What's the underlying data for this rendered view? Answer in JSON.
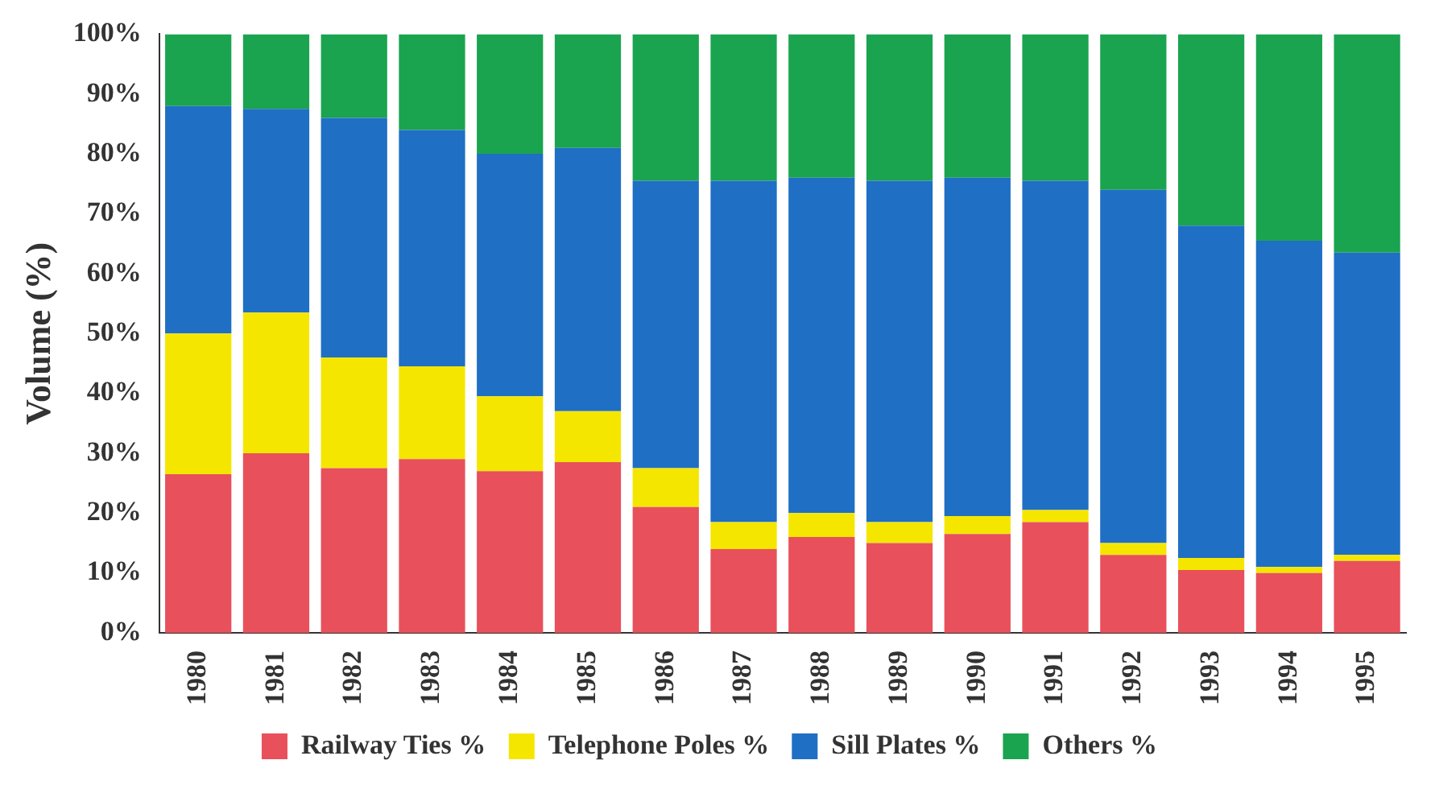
{
  "chart_data": {
    "type": "bar",
    "stacked": true,
    "ylabel": "Volume (%)",
    "categories": [
      "1980",
      "1981",
      "1982",
      "1983",
      "1984",
      "1985",
      "1986",
      "1987",
      "1988",
      "1989",
      "1990",
      "1991",
      "1992",
      "1993",
      "1994",
      "1995"
    ],
    "series": [
      {
        "name": "Railway Ties %",
        "color": "#e8505b",
        "values": [
          26.5,
          30,
          27.5,
          29,
          27,
          28.5,
          21,
          14,
          16,
          15,
          16.5,
          18.5,
          13,
          10.5,
          10,
          12
        ]
      },
      {
        "name": "Telephone Poles %",
        "color": "#f5e600",
        "values": [
          23.5,
          23.5,
          18.5,
          15.5,
          12.5,
          8.5,
          6.5,
          4.5,
          4,
          3.5,
          3,
          2,
          2,
          2,
          1,
          1
        ]
      },
      {
        "name": "Sill Plates %",
        "color": "#1f6fc4",
        "values": [
          38,
          34,
          40,
          39.5,
          40.5,
          44,
          48,
          57,
          56,
          57,
          56.5,
          55,
          59,
          55.5,
          54.5,
          50.5
        ]
      },
      {
        "name": "Others %",
        "color": "#1aa44f",
        "values": [
          12,
          12.5,
          14,
          16,
          20,
          19,
          24.5,
          24.5,
          24,
          24.5,
          24,
          24.5,
          26,
          32,
          34.5,
          36.5
        ]
      }
    ],
    "ylim": [
      0,
      100
    ],
    "yticks": [
      {
        "value": 0,
        "label": "0%"
      },
      {
        "value": 10,
        "label": "10%"
      },
      {
        "value": 20,
        "label": "20%"
      },
      {
        "value": 30,
        "label": "30%"
      },
      {
        "value": 40,
        "label": "40%"
      },
      {
        "value": 50,
        "label": "50%"
      },
      {
        "value": 60,
        "label": "60%"
      },
      {
        "value": 70,
        "label": "70%"
      },
      {
        "value": 80,
        "label": "80%"
      },
      {
        "value": 90,
        "label": "90%"
      },
      {
        "value": 100,
        "label": "100%"
      }
    ],
    "grid": false,
    "legend": "bottom"
  }
}
